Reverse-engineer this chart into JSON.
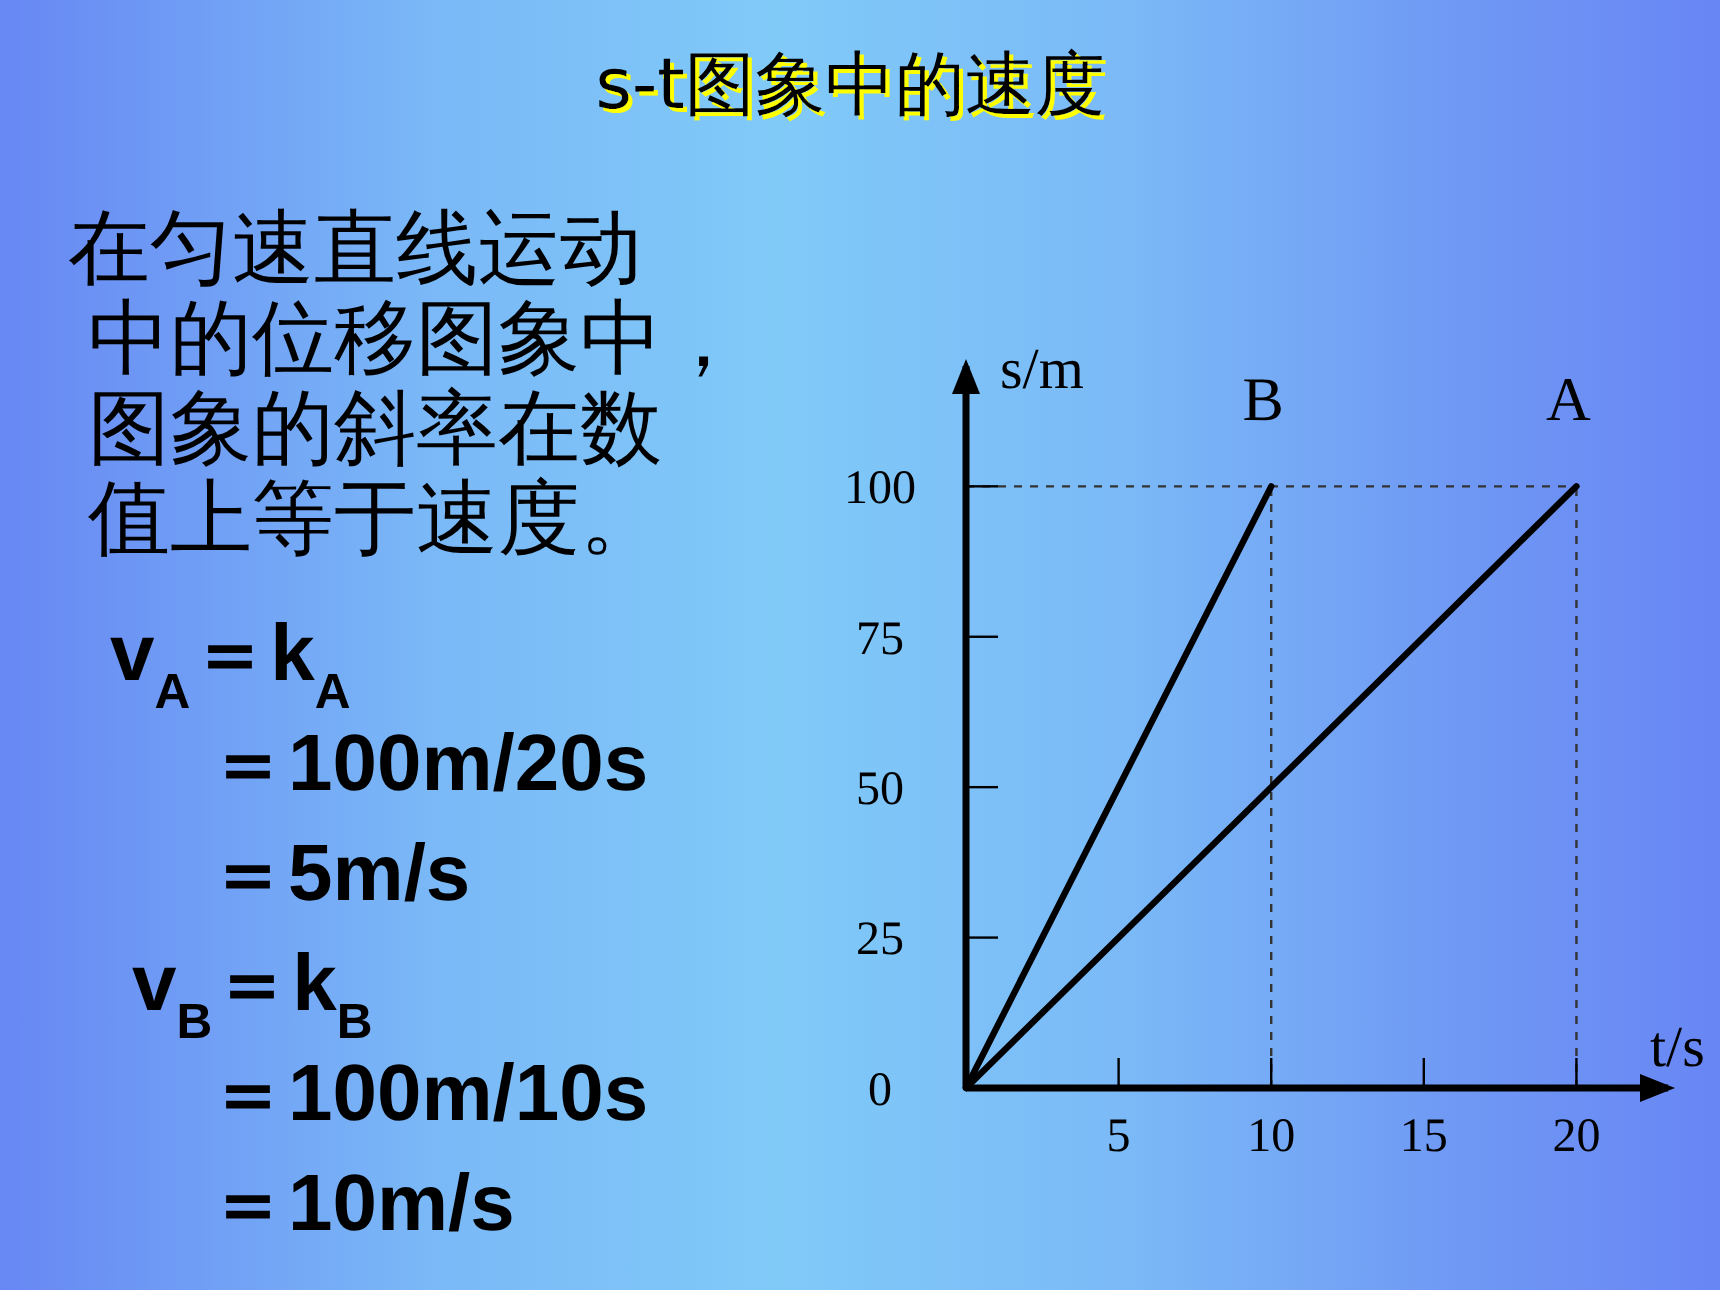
{
  "chart_data": {
    "type": "line",
    "title": "s-t图象中的速度",
    "xlabel": "t/s",
    "ylabel": "s/m",
    "annotations": [
      "在匀速直线运动中的位移图象中，图象的斜率在数值上等于速度。",
      "v$_{A}$＝k$_{A}$",
      "＝100m/20s",
      "＝5m/s",
      "v$_{B}$＝k$_{B}$",
      "＝100m/10s",
      "＝10m/s"
    ],
    "series": [
      {
        "name": "A",
        "color": "#000000",
        "x": [
          0,
          20
        ],
        "values": [
          0,
          100
        ]
      },
      {
        "name": "B",
        "color": "#000000",
        "x": [
          0,
          10
        ],
        "values": [
          0,
          100
        ]
      }
    ],
    "xlim": [
      0,
      23
    ],
    "ylim": [
      0,
      120
    ],
    "xticks": [
      5,
      10,
      15,
      20
    ],
    "yticks": [
      0,
      25,
      50,
      75,
      100
    ],
    "ref_lines": [
      {
        "axis": "y",
        "value": 100,
        "line_style": "dashed",
        "color": "#333333"
      },
      {
        "axis": "x",
        "value": 10,
        "line_style": "dashed",
        "color": "#333333"
      },
      {
        "axis": "x",
        "value": 20,
        "line_style": "dashed",
        "color": "#333333"
      }
    ]
  }
}
